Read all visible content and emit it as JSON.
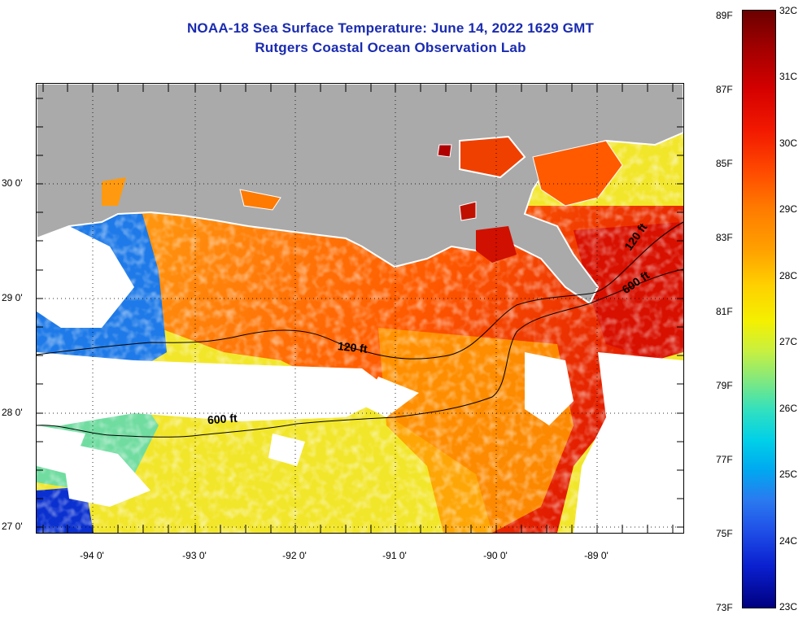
{
  "title": {
    "line1": "NOAA-18 Sea Surface Temperature:  June 14, 2022 1629 GMT",
    "line2": "Rutgers Coastal Ocean Observation Lab"
  },
  "map": {
    "latitude_labels": [
      "30 0'",
      "29 0'",
      "28 0'",
      "27 0'"
    ],
    "longitude_labels": [
      "-94 0'",
      "-93 0'",
      "-92 0'",
      "-91 0'",
      "-90 0'",
      "-89 0'"
    ],
    "contours": [
      {
        "label": "120 ft"
      },
      {
        "label": "600 ft"
      },
      {
        "label": "120 ft"
      },
      {
        "label": "600 ft"
      }
    ],
    "colors": {
      "land": "#aaaaaa",
      "no_data": "#ffffff",
      "hot": "#e01a00",
      "warm": "#ff7a00",
      "mild": "#f0e000",
      "cool": "#20d0d0",
      "cold": "#1040e0"
    }
  },
  "colorbar": {
    "fahrenheit_labels": [
      "89F",
      "87F",
      "85F",
      "83F",
      "81F",
      "79F",
      "77F",
      "75F",
      "73F"
    ],
    "celsius_labels": [
      "32C",
      "31C",
      "30C",
      "29C",
      "28C",
      "27C",
      "26C",
      "25C",
      "24C",
      "23C"
    ]
  }
}
